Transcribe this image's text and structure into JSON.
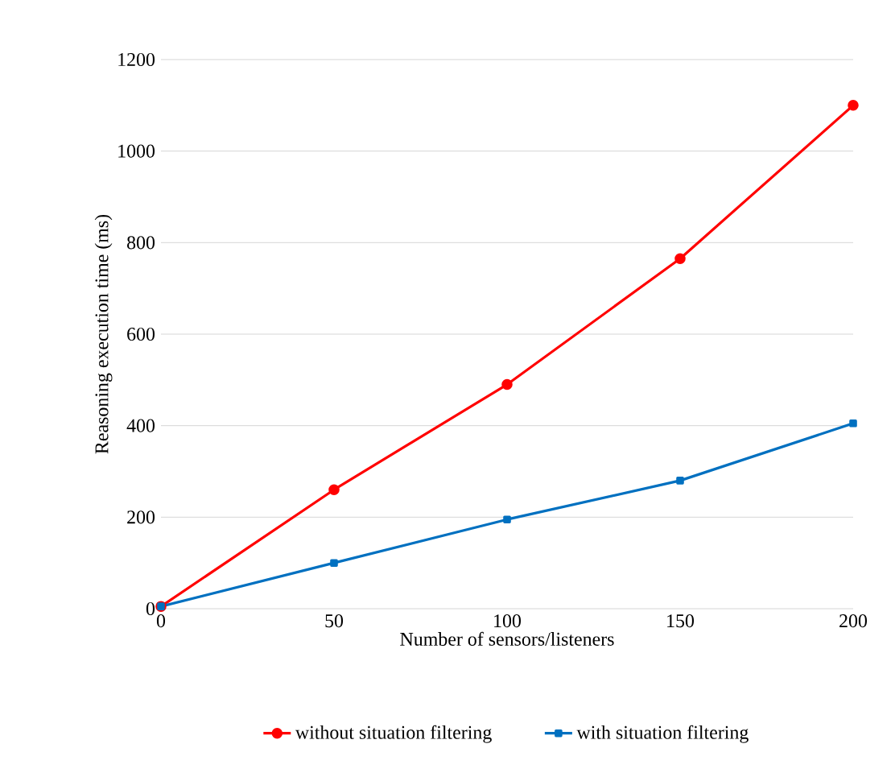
{
  "chart_data": {
    "type": "line",
    "xlabel": "Number of sensors/listeners",
    "ylabel": "Reasoning execution time (ms)",
    "x": [
      0,
      50,
      100,
      150,
      200
    ],
    "series": [
      {
        "name": "without situation filtering",
        "color": "#ff0000",
        "marker": "circle",
        "values": [
          5,
          260,
          490,
          765,
          1100
        ]
      },
      {
        "name": "with situation filtering",
        "color": "#0070c0",
        "marker": "square",
        "values": [
          5,
          100,
          195,
          280,
          405
        ]
      }
    ],
    "xlim": [
      0,
      200
    ],
    "ylim": [
      0,
      1200
    ],
    "xticks": [
      0,
      50,
      100,
      150,
      200
    ],
    "yticks": [
      0,
      200,
      400,
      600,
      800,
      1000,
      1200
    ],
    "grid": "y",
    "legend": "bottom"
  }
}
